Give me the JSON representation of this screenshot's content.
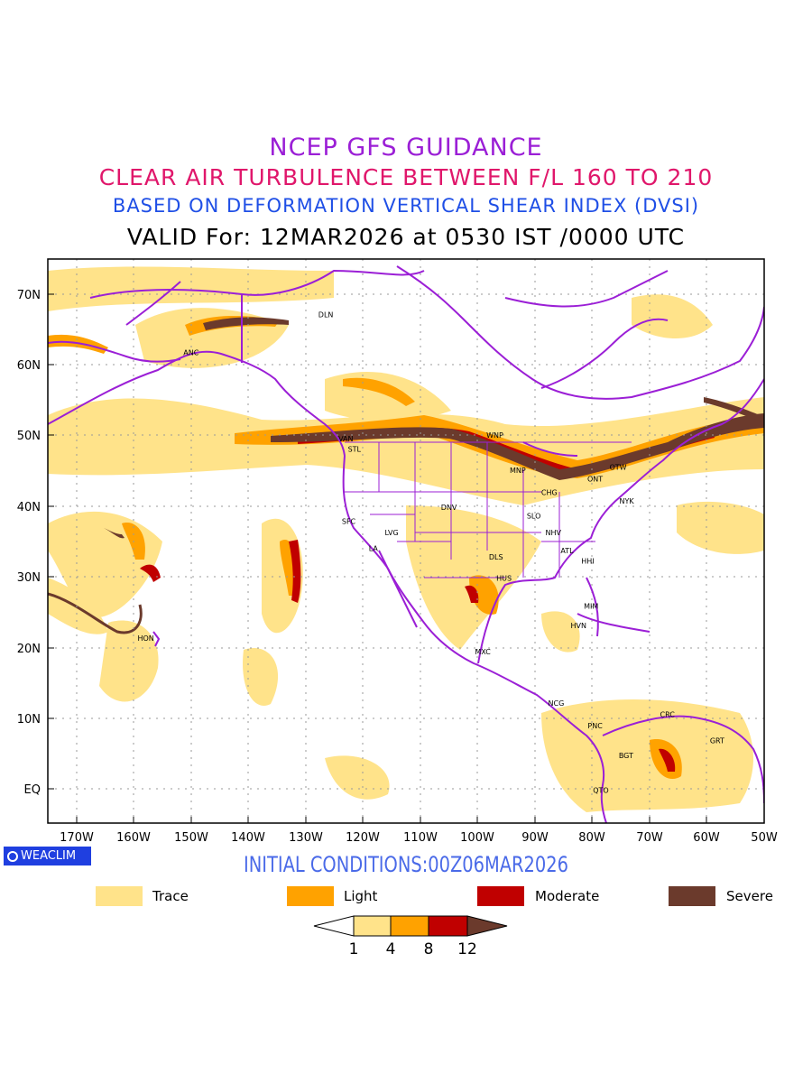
{
  "titles": {
    "line1": "NCEP GFS GUIDANCE",
    "line2": "CLEAR AIR TURBULENCE BETWEEN F/L 160 TO 210",
    "line3": "BASED ON DEFORMATION VERTICAL SHEAR INDEX (DVSI)",
    "line4": "VALID For: 12MAR2026 at 0530 IST /0000 UTC"
  },
  "axes": {
    "lat_labels": [
      "70N",
      "60N",
      "50N",
      "40N",
      "30N",
      "20N",
      "10N",
      "EQ"
    ],
    "lon_labels": [
      "170W",
      "160W",
      "150W",
      "140W",
      "130W",
      "120W",
      "110W",
      "100W",
      "90W",
      "80W",
      "70W",
      "60W",
      "50W"
    ]
  },
  "stations": [
    {
      "id": "DLN",
      "lon": -126.5,
      "lat": 67.0
    },
    {
      "id": "ANC",
      "lon": -150.0,
      "lat": 61.7
    },
    {
      "id": "VAN",
      "lon": -123.0,
      "lat": 49.5
    },
    {
      "id": "STL",
      "lon": -121.5,
      "lat": 48.0
    },
    {
      "id": "WNP",
      "lon": -97.0,
      "lat": 50.0
    },
    {
      "id": "MNP",
      "lon": -93.0,
      "lat": 45.0
    },
    {
      "id": "OTW",
      "lon": -75.5,
      "lat": 45.5
    },
    {
      "id": "ONT",
      "lon": -79.5,
      "lat": 43.8
    },
    {
      "id": "CHG",
      "lon": -87.5,
      "lat": 41.9
    },
    {
      "id": "NYK",
      "lon": -74.0,
      "lat": 40.7
    },
    {
      "id": "DNV",
      "lon": -105.0,
      "lat": 39.8
    },
    {
      "id": "SFC",
      "lon": -122.5,
      "lat": 37.8
    },
    {
      "id": "LVG",
      "lon": -115.0,
      "lat": 36.2
    },
    {
      "id": "SLO",
      "lon": -90.2,
      "lat": 38.6
    },
    {
      "id": "NHV",
      "lon": -86.8,
      "lat": 36.2
    },
    {
      "id": "LA",
      "lon": -118.2,
      "lat": 34.0
    },
    {
      "id": "ATL",
      "lon": -84.4,
      "lat": 33.7
    },
    {
      "id": "DLS",
      "lon": -96.8,
      "lat": 32.8
    },
    {
      "id": "HHI",
      "lon": -80.8,
      "lat": 32.2
    },
    {
      "id": "HUS",
      "lon": -95.4,
      "lat": 29.8
    },
    {
      "id": "MIM",
      "lon": -80.2,
      "lat": 25.8
    },
    {
      "id": "HVN",
      "lon": -82.4,
      "lat": 23.1
    },
    {
      "id": "HON",
      "lon": -157.9,
      "lat": 21.3
    },
    {
      "id": "MXC",
      "lon": -99.1,
      "lat": 19.4
    },
    {
      "id": "NCG",
      "lon": -86.3,
      "lat": 12.1
    },
    {
      "id": "CRC",
      "lon": -66.9,
      "lat": 10.5
    },
    {
      "id": "PNC",
      "lon": -79.5,
      "lat": 8.9
    },
    {
      "id": "GRT",
      "lon": -58.2,
      "lat": 6.8
    },
    {
      "id": "BGT",
      "lon": -74.1,
      "lat": 4.7
    },
    {
      "id": "QTO",
      "lon": -78.5,
      "lat": -0.2
    }
  ],
  "logo": {
    "text": "WEACLIM"
  },
  "initial_conditions": "INITIAL CONDITIONS:00Z06MAR2026",
  "legend": [
    {
      "label": "Trace",
      "color": "#ffe38a"
    },
    {
      "label": "Light",
      "color": "#ffa200"
    },
    {
      "label": "Moderate",
      "color": "#c00000"
    },
    {
      "label": "Severe",
      "color": "#6b3a2c"
    }
  ],
  "colorbar": {
    "ticks": [
      "1",
      "4",
      "8",
      "12"
    ],
    "colors": [
      "#ffffff",
      "#ffe38a",
      "#ffa200",
      "#c00000",
      "#6b3a2c"
    ]
  },
  "map_colors": {
    "coast": "#9b1fd6",
    "grid": "#999999",
    "trace": "#ffe38a",
    "light": "#ffa200",
    "moderate": "#c00000",
    "severe": "#6b3a2c"
  }
}
